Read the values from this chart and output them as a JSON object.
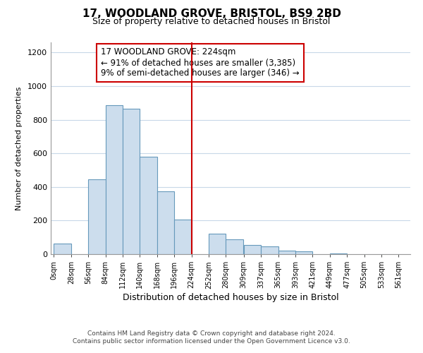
{
  "title": "17, WOODLAND GROVE, BRISTOL, BS9 2BD",
  "subtitle": "Size of property relative to detached houses in Bristol",
  "xlabel": "Distribution of detached houses by size in Bristol",
  "ylabel": "Number of detached properties",
  "bar_left_edges": [
    0,
    28,
    56,
    84,
    112,
    140,
    168,
    196,
    252,
    280,
    309,
    337,
    365,
    393,
    421,
    449,
    477,
    505,
    533
  ],
  "bar_heights": [
    65,
    0,
    445,
    885,
    865,
    580,
    375,
    205,
    120,
    90,
    55,
    45,
    20,
    15,
    0,
    5,
    0,
    0,
    0
  ],
  "bar_widths": [
    28,
    28,
    28,
    28,
    28,
    28,
    28,
    28,
    28,
    28,
    28,
    28,
    28,
    28,
    28,
    28,
    28,
    28,
    28
  ],
  "bar_color": "#ccdded",
  "bar_edgecolor": "#6699bb",
  "vline_x": 224,
  "vline_color": "#cc0000",
  "annotation_title": "17 WOODLAND GROVE: 224sqm",
  "annotation_line1": "← 91% of detached houses are smaller (3,385)",
  "annotation_line2": "9% of semi-detached houses are larger (346) →",
  "annotation_box_color": "#ffffff",
  "annotation_box_edgecolor": "#cc0000",
  "xtick_labels": [
    "0sqm",
    "28sqm",
    "56sqm",
    "84sqm",
    "112sqm",
    "140sqm",
    "168sqm",
    "196sqm",
    "224sqm",
    "252sqm",
    "280sqm",
    "309sqm",
    "337sqm",
    "365sqm",
    "393sqm",
    "421sqm",
    "449sqm",
    "477sqm",
    "505sqm",
    "533sqm",
    "561sqm"
  ],
  "xtick_positions": [
    0,
    28,
    56,
    84,
    112,
    140,
    168,
    196,
    224,
    252,
    280,
    309,
    337,
    365,
    393,
    421,
    449,
    477,
    505,
    533,
    561
  ],
  "ylim": [
    0,
    1260
  ],
  "xlim": [
    -5,
    580
  ],
  "yticks": [
    0,
    200,
    400,
    600,
    800,
    1000,
    1200
  ],
  "background_color": "#ffffff",
  "grid_color": "#c8d8e8",
  "footer_line1": "Contains HM Land Registry data © Crown copyright and database right 2024.",
  "footer_line2": "Contains public sector information licensed under the Open Government Licence v3.0."
}
